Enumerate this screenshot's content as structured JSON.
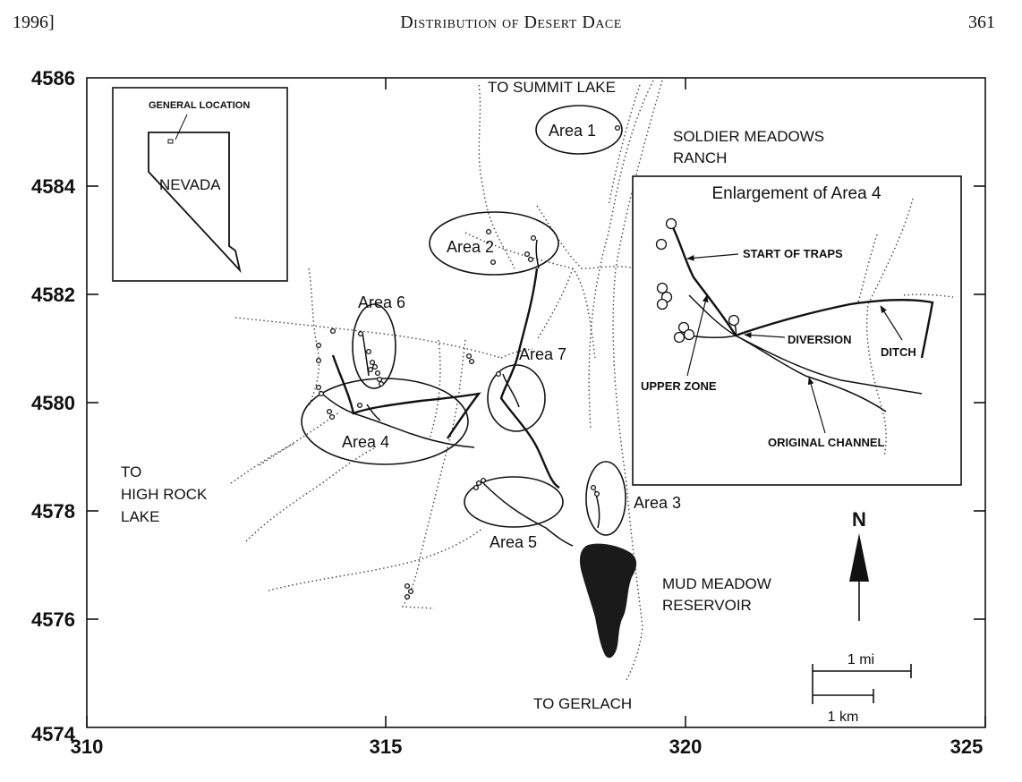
{
  "header": {
    "left": "1996]",
    "center": "Distribution of Desert Dace",
    "right": "361"
  },
  "axes": {
    "x_ticks": [
      "310",
      "315",
      "320",
      "325"
    ],
    "y_ticks": [
      "4574",
      "4576",
      "4578",
      "4580",
      "4582",
      "4584",
      "4586"
    ]
  },
  "labels": {
    "to_summit_lake": "TO SUMMIT LAKE",
    "soldier_meadows_1": "SOLDIER MEADOWS",
    "soldier_meadows_2": "RANCH",
    "to_high_rock_1": "TO",
    "to_high_rock_2": "HIGH ROCK",
    "to_high_rock_3": "LAKE",
    "mud_meadow_1": "MUD MEADOW",
    "mud_meadow_2": "RESERVOIR",
    "to_gerlach": "TO GERLACH",
    "north": "N",
    "scale_mi": "1 mi",
    "scale_km": "1 km"
  },
  "areas": {
    "area1": "Area 1",
    "area2": "Area 2",
    "area3": "Area 3",
    "area4": "Area 4",
    "area5": "Area 5",
    "area6": "Area 6",
    "area7": "Area 7"
  },
  "location_inset": {
    "general_location": "GENERAL LOCATION",
    "state": "NEVADA"
  },
  "enlargement_inset": {
    "title": "Enlargement of Area 4",
    "start_of_traps": "START OF TRAPS",
    "diversion": "DIVERSION",
    "ditch": "DITCH",
    "upper_zone": "UPPER ZONE",
    "original_channel": "ORIGINAL CHANNEL"
  },
  "colors": {
    "ink": "#111111",
    "reservoir": "#1a1a1a",
    "paper": "#ffffff"
  }
}
